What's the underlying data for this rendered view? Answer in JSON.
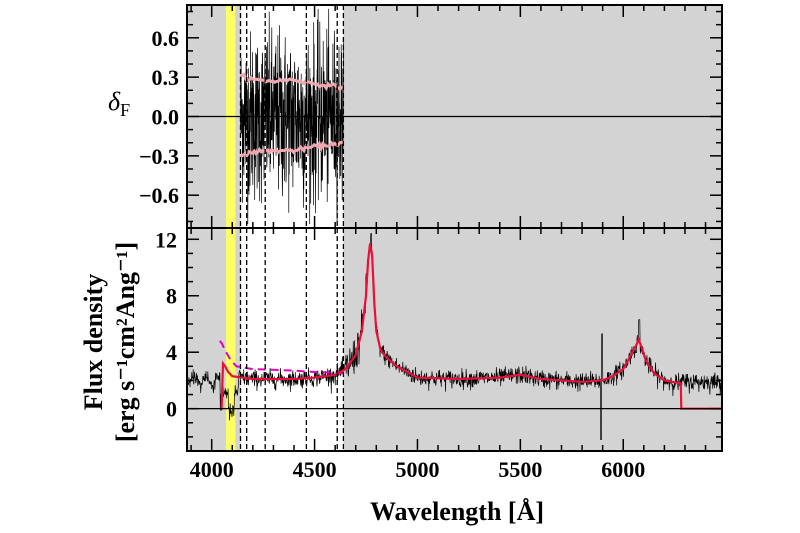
{
  "chart_data": [
    {
      "type": "line",
      "panel": "residual",
      "ylabel": "δ",
      "ylabel_sub": "F",
      "xlim": [
        3880,
        6480
      ],
      "ylim": [
        -0.85,
        0.85
      ],
      "yticks": [
        -0.6,
        -0.3,
        0.0,
        0.3,
        0.6
      ],
      "ytick_labels": [
        "−0.6",
        "−0.3",
        "0.0",
        "0.3",
        "0.6"
      ],
      "zero_line": 0.0,
      "noise_range": [
        4140,
        4640
      ],
      "envelope": {
        "x": [
          4140,
          4200,
          4300,
          4400,
          4500,
          4640
        ],
        "upper": [
          0.31,
          0.28,
          0.27,
          0.28,
          0.25,
          0.22
        ],
        "lower": [
          -0.3,
          -0.27,
          -0.26,
          -0.26,
          -0.23,
          -0.2
        ]
      },
      "colors": {
        "data": "#000000",
        "envelope": "#f0a8b0",
        "masked": "#d3d3d3",
        "highlight": "#ffff66"
      }
    },
    {
      "type": "line",
      "panel": "spectrum",
      "xlabel": "Wavelength  [Å]",
      "ylabel_line1": "Flux density",
      "ylabel_line2": "[erg s⁻¹cm²Ang⁻¹]",
      "xlim": [
        3880,
        6480
      ],
      "ylim": [
        -3,
        12.8
      ],
      "xticks": [
        4000,
        4500,
        5000,
        5500,
        6000
      ],
      "xtick_labels": [
        "4000",
        "4500",
        "5000",
        "5500",
        "6000"
      ],
      "yticks": [
        0,
        4,
        8,
        12
      ],
      "ytick_labels": [
        "0",
        "4",
        "8",
        "12"
      ],
      "zero_line": 0,
      "model": {
        "x": [
          4040,
          4048,
          4055,
          4065,
          4080,
          4100,
          4150,
          4200,
          4300,
          4400,
          4500,
          4600,
          4650,
          4700,
          4730,
          4750,
          4760,
          4770,
          4780,
          4790,
          4800,
          4820,
          4850,
          4900,
          5000,
          5200,
          5400,
          5500,
          5600,
          5800,
          5900,
          5950,
          6000,
          6030,
          6060,
          6075,
          6090,
          6110,
          6150,
          6200,
          6280,
          6282,
          6300,
          6480
        ],
        "y": [
          0,
          0,
          3.2,
          3.0,
          2.6,
          2.3,
          2.2,
          2.1,
          2.1,
          2.1,
          2.2,
          2.4,
          2.8,
          3.8,
          5.5,
          8.0,
          10.5,
          11.7,
          10.8,
          7.5,
          5.5,
          4.2,
          3.6,
          3.0,
          2.2,
          2.1,
          2.2,
          2.4,
          2.1,
          1.9,
          2.0,
          2.3,
          2.8,
          3.6,
          4.4,
          4.9,
          4.3,
          3.4,
          2.5,
          2.0,
          1.8,
          0,
          0,
          0
        ],
        "color": "#e8103a"
      },
      "model_dashed": {
        "x": [
          4040,
          4050,
          4070,
          4090,
          4120,
          4200,
          4300,
          4400,
          4500,
          4600,
          4650
        ],
        "y": [
          4.8,
          4.6,
          4.0,
          3.5,
          3.0,
          2.8,
          2.75,
          2.7,
          2.6,
          2.55,
          2.5
        ],
        "color": "#e000c0"
      },
      "colors": {
        "data": "#000000",
        "masked": "#d3d3d3",
        "highlight": "#ffff66"
      }
    }
  ],
  "shared": {
    "masked_regions": [
      [
        3880,
        4140
      ],
      [
        4640,
        6480
      ]
    ],
    "highlight_band": [
      4070,
      4115
    ],
    "dashed_vlines": [
      4140,
      4170,
      4260,
      4460,
      4610,
      4640
    ]
  }
}
